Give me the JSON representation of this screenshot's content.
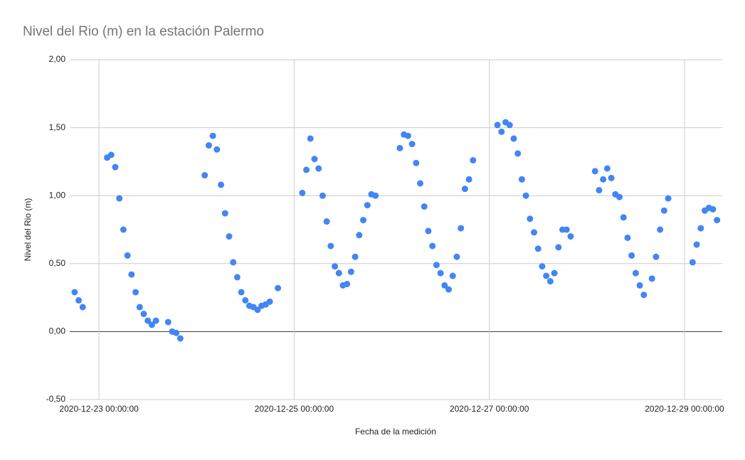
{
  "chart_data": {
    "type": "scatter",
    "title": "Nivel del Rio (m) en la estación Palermo",
    "x_label": "Fecha de la medición",
    "y_label": "Nivel del Rio (m)",
    "color": "#4285f4",
    "grid": true,
    "xlim": [
      "2020-12-22 16:48:00",
      "2020-12-29 09:17:00"
    ],
    "xticks": [
      "2020-12-23 00:00:00",
      "2020-12-25 00:00:00",
      "2020-12-27 00:00:00",
      "2020-12-29 00:00:00"
    ],
    "ylim": [
      -0.5,
      2
    ],
    "yticks": [
      {
        "value": -0.5,
        "label": "-0,50"
      },
      {
        "value": 0,
        "label": "0,00"
      },
      {
        "value": 0.5,
        "label": "0,50"
      },
      {
        "value": 1,
        "label": "1,00"
      },
      {
        "value": 1.5,
        "label": "1,50"
      },
      {
        "value": 2,
        "label": "2,00"
      }
    ],
    "x": [
      "2020-12-22 18:00:00",
      "2020-12-22 19:00:00",
      "2020-12-22 20:00:00",
      "2020-12-23 02:00:00",
      "2020-12-23 03:00:00",
      "2020-12-23 04:00:00",
      "2020-12-23 05:00:00",
      "2020-12-23 06:00:00",
      "2020-12-23 07:00:00",
      "2020-12-23 08:00:00",
      "2020-12-23 09:00:00",
      "2020-12-23 10:00:00",
      "2020-12-23 11:00:00",
      "2020-12-23 12:00:00",
      "2020-12-23 13:00:00",
      "2020-12-23 14:00:00",
      "2020-12-23 17:00:00",
      "2020-12-23 18:00:00",
      "2020-12-23 19:00:00",
      "2020-12-23 20:00:00",
      "2020-12-24 02:00:00",
      "2020-12-24 03:00:00",
      "2020-12-24 04:00:00",
      "2020-12-24 05:00:00",
      "2020-12-24 06:00:00",
      "2020-12-24 07:00:00",
      "2020-12-24 08:00:00",
      "2020-12-24 09:00:00",
      "2020-12-24 10:00:00",
      "2020-12-24 11:00:00",
      "2020-12-24 12:00:00",
      "2020-12-24 13:00:00",
      "2020-12-24 14:00:00",
      "2020-12-24 15:00:00",
      "2020-12-24 16:00:00",
      "2020-12-24 17:00:00",
      "2020-12-24 18:00:00",
      "2020-12-24 20:00:00",
      "2020-12-25 02:00:00",
      "2020-12-25 03:00:00",
      "2020-12-25 04:00:00",
      "2020-12-25 05:00:00",
      "2020-12-25 06:00:00",
      "2020-12-25 07:00:00",
      "2020-12-25 08:00:00",
      "2020-12-25 09:00:00",
      "2020-12-25 10:00:00",
      "2020-12-25 11:00:00",
      "2020-12-25 12:00:00",
      "2020-12-25 13:00:00",
      "2020-12-25 14:00:00",
      "2020-12-25 15:00:00",
      "2020-12-25 16:00:00",
      "2020-12-25 17:00:00",
      "2020-12-25 18:00:00",
      "2020-12-25 19:00:00",
      "2020-12-25 20:00:00",
      "2020-12-26 02:00:00",
      "2020-12-26 03:00:00",
      "2020-12-26 04:00:00",
      "2020-12-26 05:00:00",
      "2020-12-26 06:00:00",
      "2020-12-26 07:00:00",
      "2020-12-26 08:00:00",
      "2020-12-26 09:00:00",
      "2020-12-26 10:00:00",
      "2020-12-26 11:00:00",
      "2020-12-26 12:00:00",
      "2020-12-26 13:00:00",
      "2020-12-26 14:00:00",
      "2020-12-26 15:00:00",
      "2020-12-26 16:00:00",
      "2020-12-26 17:00:00",
      "2020-12-26 18:00:00",
      "2020-12-26 19:00:00",
      "2020-12-26 20:00:00",
      "2020-12-27 02:00:00",
      "2020-12-27 03:00:00",
      "2020-12-27 04:00:00",
      "2020-12-27 05:00:00",
      "2020-12-27 06:00:00",
      "2020-12-27 07:00:00",
      "2020-12-27 08:00:00",
      "2020-12-27 09:00:00",
      "2020-12-27 10:00:00",
      "2020-12-27 11:00:00",
      "2020-12-27 12:00:00",
      "2020-12-27 13:00:00",
      "2020-12-27 14:00:00",
      "2020-12-27 15:00:00",
      "2020-12-27 16:00:00",
      "2020-12-27 17:00:00",
      "2020-12-27 18:00:00",
      "2020-12-27 19:00:00",
      "2020-12-27 20:00:00",
      "2020-12-28 02:00:00",
      "2020-12-28 03:00:00",
      "2020-12-28 04:00:00",
      "2020-12-28 05:00:00",
      "2020-12-28 06:00:00",
      "2020-12-28 07:00:00",
      "2020-12-28 08:00:00",
      "2020-12-28 09:00:00",
      "2020-12-28 10:00:00",
      "2020-12-28 11:00:00",
      "2020-12-28 12:00:00",
      "2020-12-28 13:00:00",
      "2020-12-28 14:00:00",
      "2020-12-28 16:00:00",
      "2020-12-28 17:00:00",
      "2020-12-28 18:00:00",
      "2020-12-28 19:00:00",
      "2020-12-28 20:00:00",
      "2020-12-29 02:00:00",
      "2020-12-29 03:00:00",
      "2020-12-29 04:00:00",
      "2020-12-29 05:00:00",
      "2020-12-29 06:00:00",
      "2020-12-29 07:00:00",
      "2020-12-29 08:00:00"
    ],
    "values": [
      0.29,
      0.23,
      0.18,
      1.28,
      1.3,
      1.21,
      0.98,
      0.75,
      0.56,
      0.42,
      0.29,
      0.18,
      0.13,
      0.08,
      0.05,
      0.08,
      0.07,
      0.0,
      -0.01,
      -0.05,
      1.15,
      1.37,
      1.44,
      1.34,
      1.08,
      0.87,
      0.7,
      0.51,
      0.4,
      0.29,
      0.23,
      0.19,
      0.18,
      0.16,
      0.19,
      0.2,
      0.22,
      0.32,
      1.02,
      1.19,
      1.42,
      1.27,
      1.2,
      1.0,
      0.81,
      0.63,
      0.48,
      0.43,
      0.34,
      0.35,
      0.44,
      0.55,
      0.71,
      0.82,
      0.93,
      1.01,
      1.0,
      1.35,
      1.45,
      1.44,
      1.38,
      1.24,
      1.09,
      0.92,
      0.74,
      0.63,
      0.49,
      0.43,
      0.34,
      0.31,
      0.41,
      0.55,
      0.76,
      1.05,
      1.12,
      1.26,
      1.52,
      1.47,
      1.54,
      1.52,
      1.42,
      1.31,
      1.12,
      1.0,
      0.83,
      0.73,
      0.61,
      0.48,
      0.41,
      0.37,
      0.43,
      0.62,
      0.75,
      0.75,
      0.7,
      1.18,
      1.04,
      1.12,
      1.2,
      1.13,
      1.01,
      0.99,
      0.84,
      0.69,
      0.56,
      0.43,
      0.34,
      0.27,
      0.39,
      0.55,
      0.75,
      0.89,
      0.98,
      0.51,
      0.64,
      0.76,
      0.89,
      0.91,
      0.9,
      0.82
    ]
  }
}
